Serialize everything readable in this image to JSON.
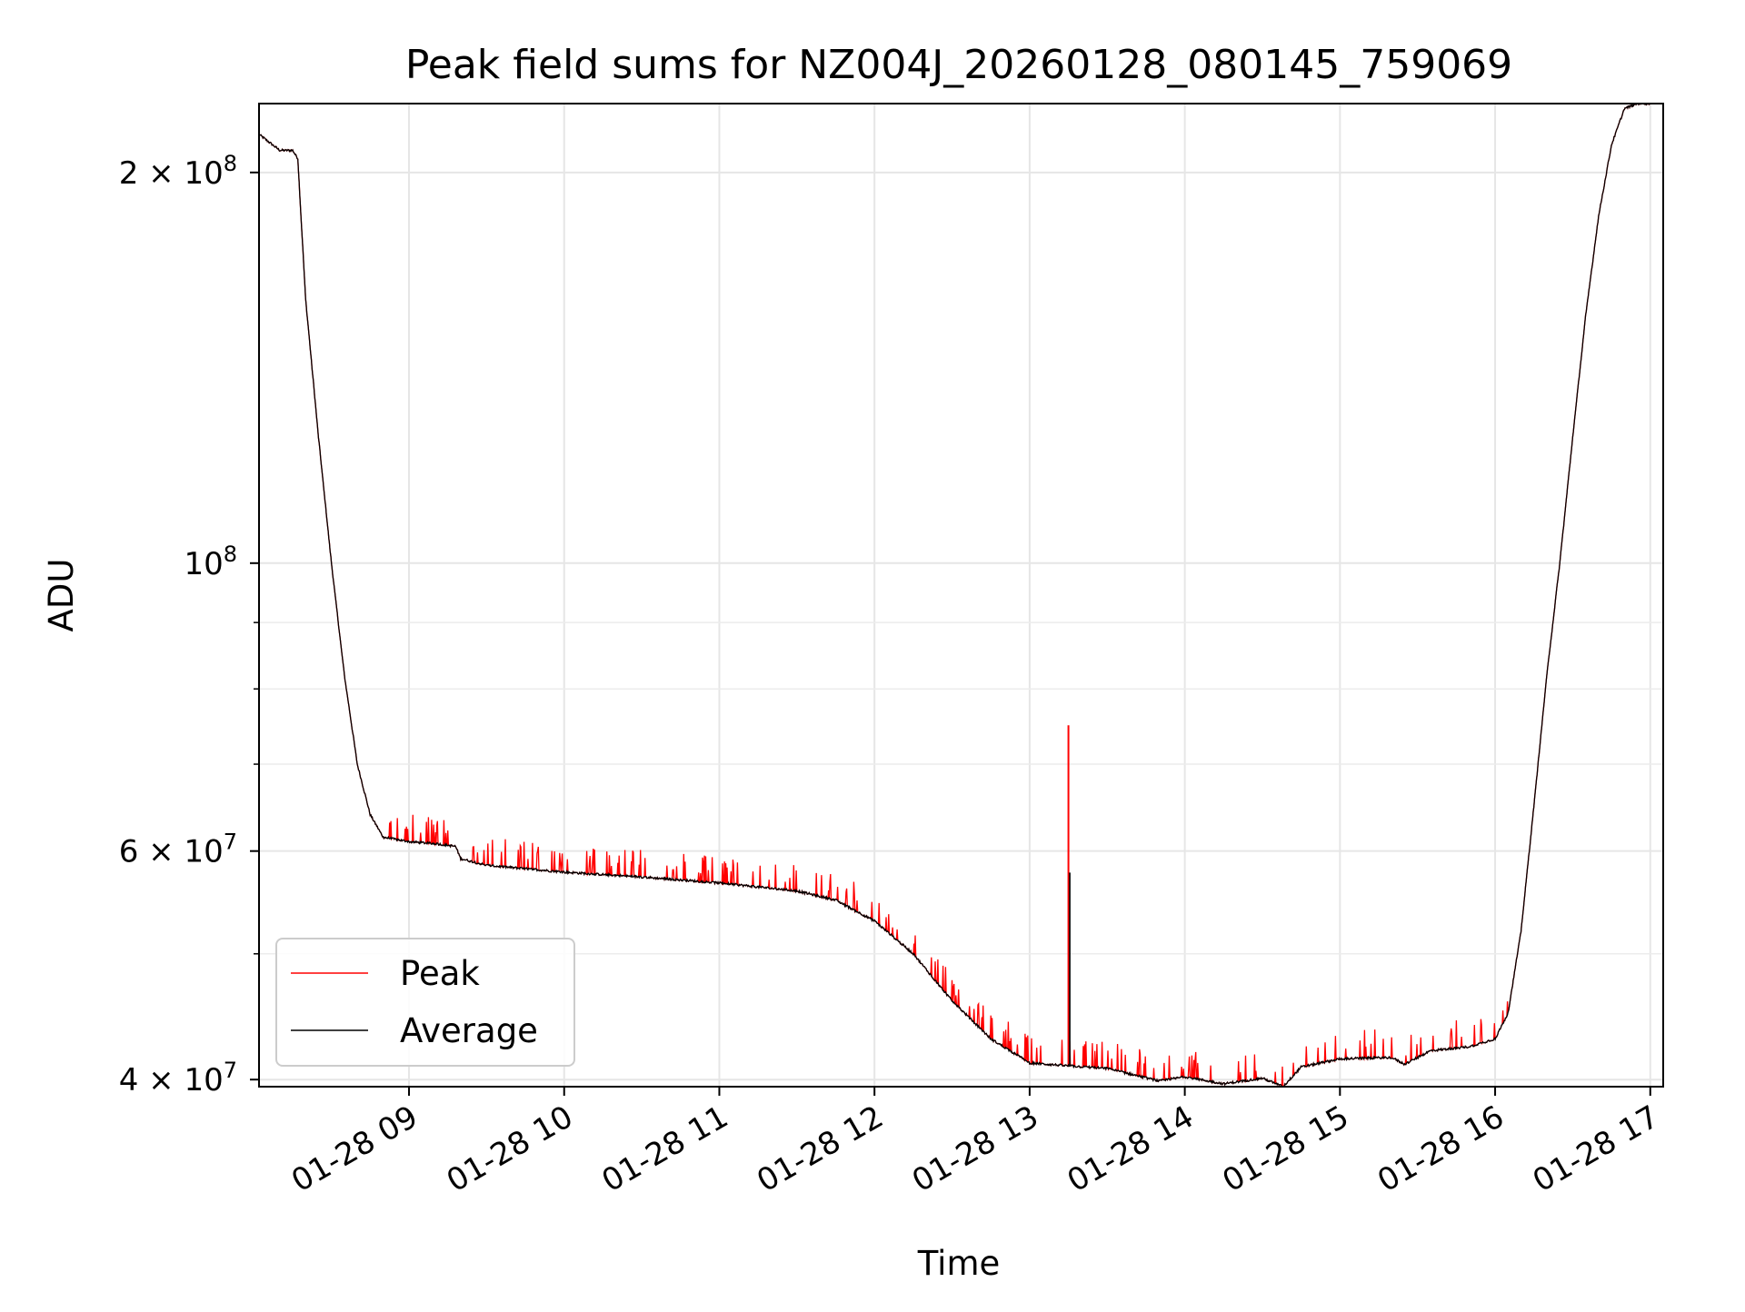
{
  "chart_data": {
    "type": "line",
    "title": "Peak field sums for NZ004J_20260128_080145_759069",
    "xlabel": "Time",
    "ylabel": "ADU",
    "yscale": "log",
    "xlim": [
      "2026-01-28 08:02",
      "2026-01-28 17:05"
    ],
    "ylim": [
      39500000,
      226000000
    ],
    "grid": true,
    "legend": "lower left",
    "x_ticks": [
      {
        "value": "2026-01-28 09:00",
        "label": "01-28 09"
      },
      {
        "value": "2026-01-28 10:00",
        "label": "01-28 10"
      },
      {
        "value": "2026-01-28 11:00",
        "label": "01-28 11"
      },
      {
        "value": "2026-01-28 12:00",
        "label": "01-28 12"
      },
      {
        "value": "2026-01-28 13:00",
        "label": "01-28 13"
      },
      {
        "value": "2026-01-28 14:00",
        "label": "01-28 14"
      },
      {
        "value": "2026-01-28 15:00",
        "label": "01-28 15"
      },
      {
        "value": "2026-01-28 16:00",
        "label": "01-28 16"
      },
      {
        "value": "2026-01-28 17:00",
        "label": "01-28 17"
      }
    ],
    "y_ticks": [
      {
        "value": 40000000,
        "base": "4 × 10",
        "exp": "7"
      },
      {
        "value": 60000000,
        "base": "6 × 10",
        "exp": "7"
      },
      {
        "value": 100000000,
        "base": "10",
        "exp": "8"
      },
      {
        "value": 200000000,
        "base": "2 × 10",
        "exp": "8"
      }
    ],
    "y_minor_ticks": [
      50000000,
      70000000,
      80000000,
      90000000,
      300000000
    ],
    "series": [
      {
        "name": "Peak",
        "color": "#ff0000",
        "note_spikes": [
          {
            "x": "2026-01-28 13:15",
            "y": 75000000
          }
        ]
      },
      {
        "name": "Average",
        "color": "#000000",
        "x": [
          "2026-01-28 08:02",
          "2026-01-28 08:10",
          "2026-01-28 08:15",
          "2026-01-28 08:17",
          "2026-01-28 08:20",
          "2026-01-28 08:25",
          "2026-01-28 08:30",
          "2026-01-28 08:35",
          "2026-01-28 08:40",
          "2026-01-28 08:45",
          "2026-01-28 08:50",
          "2026-01-28 09:00",
          "2026-01-28 09:10",
          "2026-01-28 09:18",
          "2026-01-28 09:20",
          "2026-01-28 09:30",
          "2026-01-28 10:00",
          "2026-01-28 10:30",
          "2026-01-28 11:00",
          "2026-01-28 11:30",
          "2026-01-28 11:45",
          "2026-01-28 12:00",
          "2026-01-28 12:15",
          "2026-01-28 12:30",
          "2026-01-28 12:45",
          "2026-01-28 13:00",
          "2026-01-28 13:14",
          "2026-01-28 13:30",
          "2026-01-28 13:50",
          "2026-01-28 14:00",
          "2026-01-28 14:15",
          "2026-01-28 14:30",
          "2026-01-28 14:38",
          "2026-01-28 14:45",
          "2026-01-28 15:00",
          "2026-01-28 15:20",
          "2026-01-28 15:25",
          "2026-01-28 15:35",
          "2026-01-28 15:50",
          "2026-01-28 16:00",
          "2026-01-28 16:05",
          "2026-01-28 16:10",
          "2026-01-28 16:15",
          "2026-01-28 16:20",
          "2026-01-28 16:25",
          "2026-01-28 16:30",
          "2026-01-28 16:35",
          "2026-01-28 16:40",
          "2026-01-28 16:45",
          "2026-01-28 16:50",
          "2026-01-28 16:55",
          "2026-01-28 17:00"
        ],
        "y": [
          214000000,
          208000000,
          208000000,
          205000000,
          160000000,
          125000000,
          100000000,
          82000000,
          70000000,
          64000000,
          61500000,
          61000000,
          60800000,
          60500000,
          59200000,
          58500000,
          57800000,
          57300000,
          56700000,
          55900000,
          55000000,
          53000000,
          50000000,
          46000000,
          43000000,
          41200000,
          41000000,
          40800000,
          39900000,
          40200000,
          39700000,
          40100000,
          39500000,
          40900000,
          41500000,
          41600000,
          41100000,
          42100000,
          42400000,
          43000000,
          45000000,
          52000000,
          65000000,
          82000000,
          100000000,
          125000000,
          155000000,
          185000000,
          210000000,
          224000000,
          226000000,
          226000000
        ]
      }
    ]
  }
}
